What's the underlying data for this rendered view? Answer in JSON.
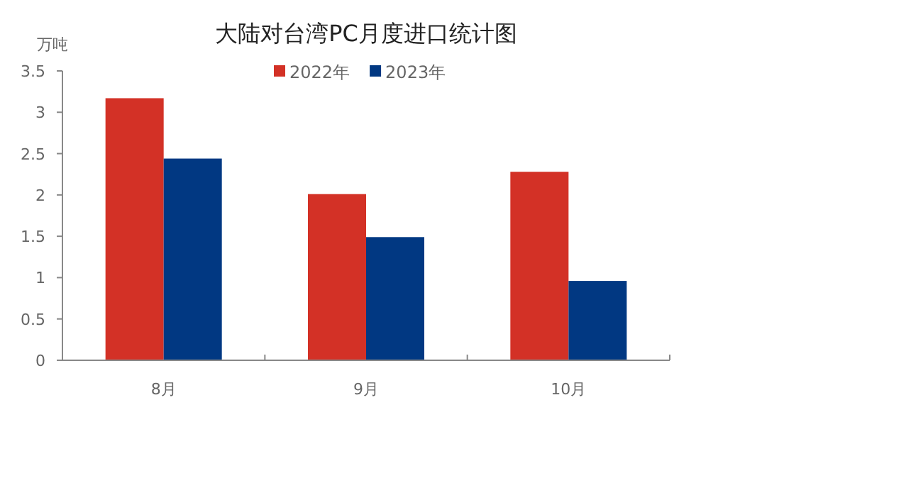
{
  "chart_data": {
    "type": "bar",
    "title": "大陆对台湾PC月度进口统计图",
    "ylabel": "万吨",
    "categories": [
      "8月",
      "9月",
      "10月"
    ],
    "series": [
      {
        "name": "2022年",
        "color": "#d33126",
        "values": [
          3.17,
          2.01,
          2.28
        ]
      },
      {
        "name": "2023年",
        "color": "#013882",
        "values": [
          2.44,
          1.49,
          0.96
        ]
      }
    ],
    "ylim": [
      0,
      3.5
    ],
    "yticks": [
      0,
      0.5,
      1,
      1.5,
      2,
      2.5,
      3,
      3.5
    ],
    "legend": "top",
    "grid": false
  }
}
